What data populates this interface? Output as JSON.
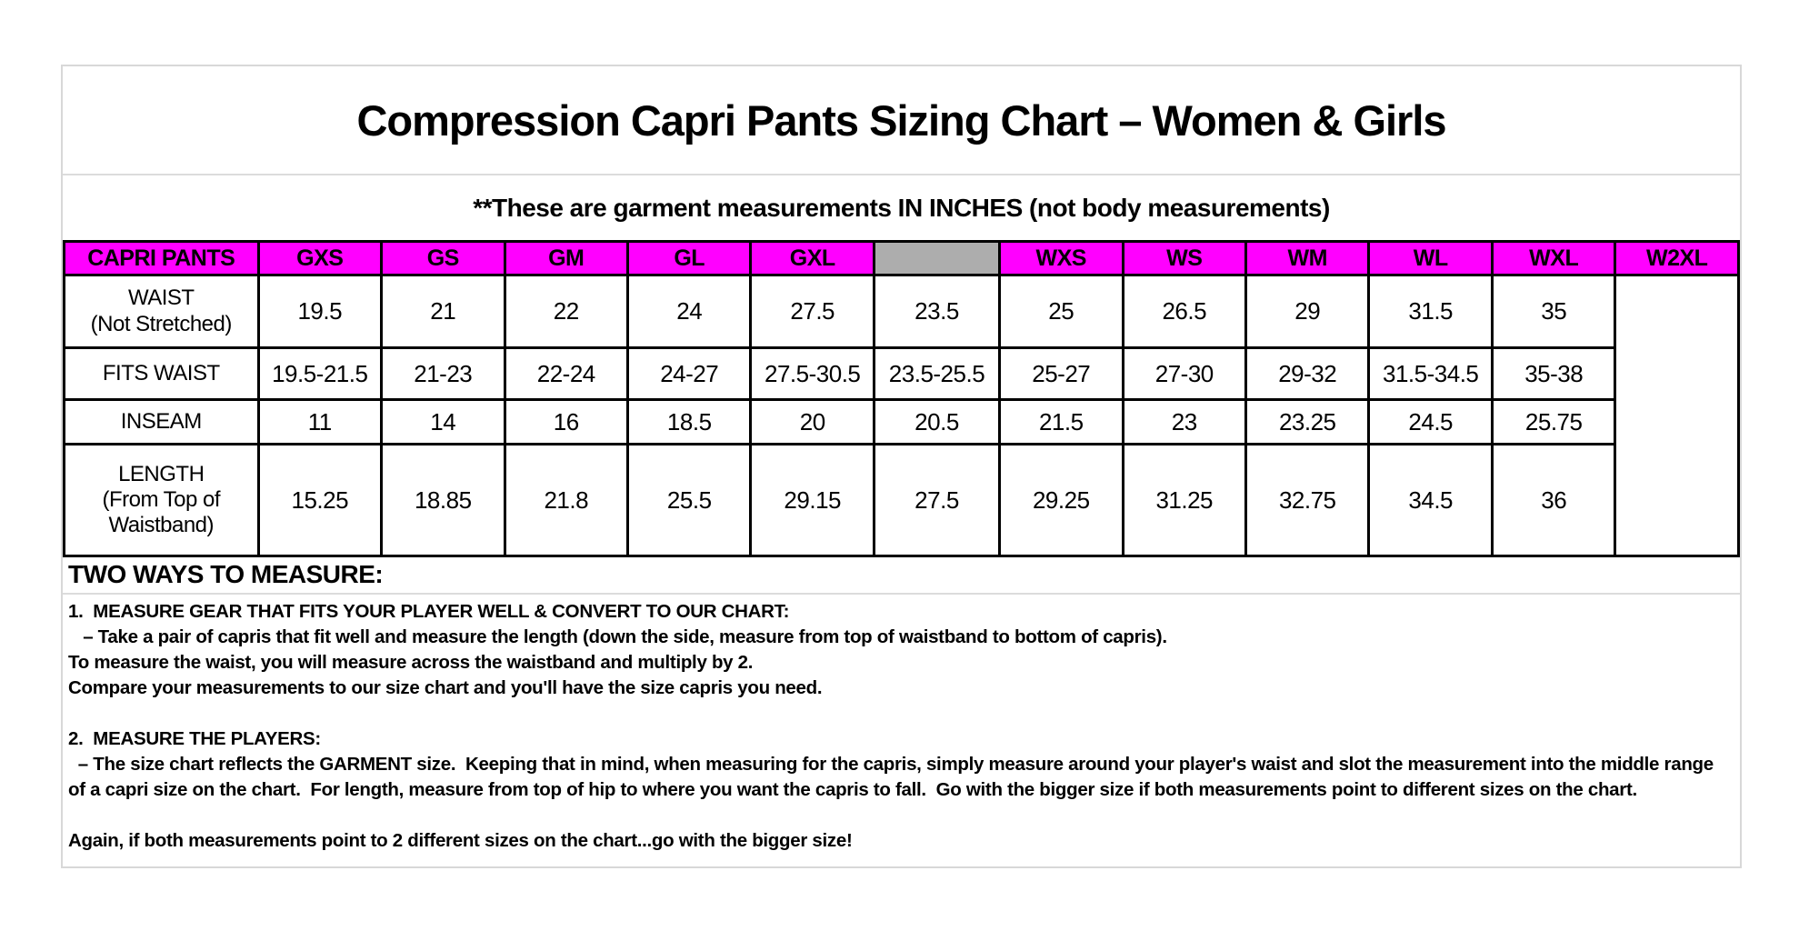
{
  "colors": {
    "header_bg": "#FF00FF",
    "spacer_bg": "#ADADAD",
    "table_border": "#000000",
    "panel_border": "#D8D8D8"
  },
  "page": {
    "title": "Compression Capri Pants Sizing Chart – Women & Girls",
    "subtitle": "**These are garment measurements IN INCHES (not body measurements)"
  },
  "size_chart": {
    "corner_label": "CAPRI PANTS",
    "girls_sizes": [
      "GXS",
      "GS",
      "GM",
      "GL",
      "GXL"
    ],
    "women_sizes": [
      "WXS",
      "WS",
      "WM",
      "WL",
      "WXL",
      "W2XL"
    ],
    "rows": [
      {
        "label_lines": [
          "WAIST",
          "(Not Stretched)"
        ],
        "girls": [
          "19.5",
          "21",
          "22",
          "24",
          "27.5"
        ],
        "women": [
          "23.5",
          "25",
          "26.5",
          "29",
          "31.5",
          "35"
        ]
      },
      {
        "label_lines": [
          "FITS WAIST"
        ],
        "girls": [
          "19.5-21.5",
          "21-23",
          "22-24",
          "24-27",
          "27.5-30.5"
        ],
        "women": [
          "23.5-25.5",
          "25-27",
          "27-30",
          "29-32",
          "31.5-34.5",
          "35-38"
        ]
      },
      {
        "label_lines": [
          "INSEAM"
        ],
        "girls": [
          "11",
          "14",
          "16",
          "18.5",
          "20"
        ],
        "women": [
          "20.5",
          "21.5",
          "23",
          "23.25",
          "24.5",
          "25.75"
        ]
      },
      {
        "label_lines": [
          "LENGTH",
          "(From Top of",
          "Waistband)"
        ],
        "girls": [
          "15.25",
          "18.85",
          "21.8",
          "25.5",
          "29.15"
        ],
        "women": [
          "27.5",
          "29.25",
          "31.25",
          "32.75",
          "34.5",
          "36"
        ]
      }
    ]
  },
  "instructions": {
    "heading": "TWO WAYS TO MEASURE:",
    "lines": [
      "1.  MEASURE GEAR THAT FITS YOUR PLAYER WELL & CONVERT TO OUR CHART:",
      "   – Take a pair of capris that fit well and measure the length (down the side, measure from top of waistband to bottom of capris).",
      "To measure the waist, you will measure across the waistband and multiply by 2.",
      "Compare your measurements to our size chart and you'll have the size capris you need.",
      "",
      "2.  MEASURE THE PLAYERS:",
      "  – The size chart reflects the GARMENT size.  Keeping that in mind, when measuring for the capris, simply measure around your player's waist and slot the measurement into the middle range of a capri size on the chart.  For length, measure from top of hip to where you want the capris to fall.  Go with the bigger size if both measurements point to different sizes on the chart.",
      "",
      "Again, if both measurements point to 2 different sizes on the chart...go with the bigger size!"
    ]
  }
}
